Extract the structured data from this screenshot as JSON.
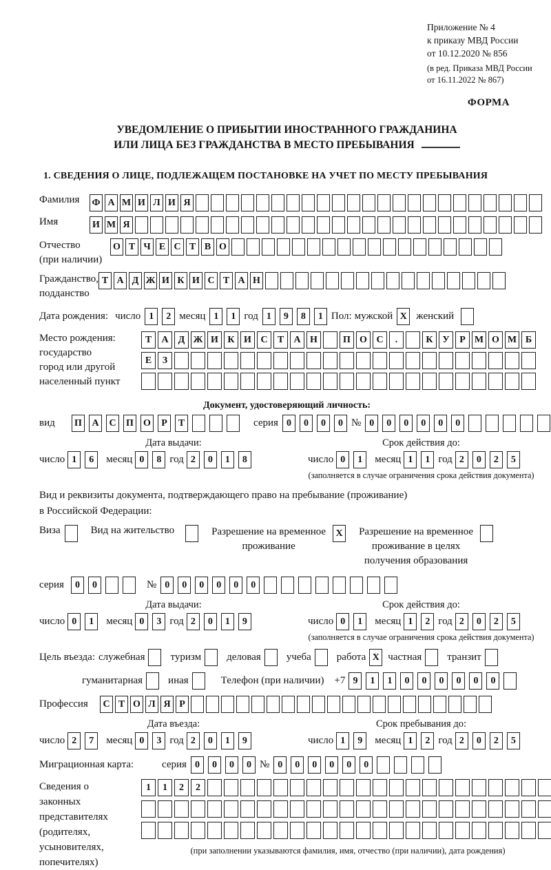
{
  "header": {
    "appendix": [
      "Приложение № 4",
      "к приказу МВД России",
      "от 10.12.2020 № 856"
    ],
    "revision": [
      "(в ред. Приказа МВД России",
      "от 16.11.2022 № 867)"
    ],
    "forma": "ФОРМА"
  },
  "title": {
    "line1": "УВЕДОМЛЕНИЕ О ПРИБЫТИИ ИНОСТРАННОГО ГРАЖДАНИНА",
    "line2": "ИЛИ ЛИЦА БЕЗ ГРАЖДАНСТВА В МЕСТО ПРЕБЫВАНИЯ"
  },
  "section1_heading": "1. СВЕДЕНИЯ О ЛИЦЕ, ПОДЛЕЖАЩЕМ ПОСТАНОВКЕ НА УЧЕТ ПО МЕСТУ ПРЕБЫВАНИЯ",
  "surname": {
    "label": "Фамилия",
    "cells": {
      "t": "ФАМИЛИЯ",
      "n": 30
    }
  },
  "firstname": {
    "label": "Имя",
    "cells": {
      "t": "ИМЯ",
      "n": 30
    }
  },
  "patronymic": {
    "label1": "Отчество",
    "label2": "(при наличии)",
    "cells": {
      "t": "ОТЧЕСТВО",
      "n": 26
    }
  },
  "citizenship": {
    "label1": "Гражданство,",
    "label2": "подданство",
    "cells": {
      "t": "ТАДЖИКИСТАН",
      "n": 27
    }
  },
  "birthdate": {
    "label": "Дата рождения:",
    "day_label": "число",
    "day": {
      "t": "12",
      "n": 2
    },
    "month_label": "месяц",
    "month": {
      "t": "11",
      "n": 2
    },
    "year_label": "год",
    "year": {
      "t": "1981",
      "n": 4
    }
  },
  "sex": {
    "label": "Пол:",
    "male_label": "мужской",
    "male": {
      "t": "X",
      "n": 1
    },
    "female_label": "женский",
    "female": {
      "t": "",
      "n": 1
    }
  },
  "birthplace": {
    "label1": "Место рождения:",
    "label2": "государство",
    "label3": "город или другой",
    "label4": "населенный пункт",
    "row1": {
      "t": "ТАДЖИКИСТАН ПОС. КУРМОМБ",
      "n": 24
    },
    "row2": {
      "t": "ЕЗ",
      "n": 24
    },
    "row3": {
      "t": "",
      "n": 24
    }
  },
  "iddoc": {
    "heading": "Документ, удостоверяющий личность:",
    "kind_label": "вид",
    "kind": {
      "t": "ПАСПОРТ",
      "n": 10
    },
    "series_label": "серия",
    "series": {
      "t": "0000",
      "n": 4
    },
    "number_label": "№",
    "number": {
      "t": "000000",
      "n": 12
    }
  },
  "iddoc_issue": {
    "title": "Дата выдачи:",
    "day_label": "число",
    "day": {
      "t": "16",
      "n": 2
    },
    "month_label": "месяц",
    "month": {
      "t": "08",
      "n": 2
    },
    "year_label": "год",
    "year": {
      "t": "2018",
      "n": 4
    }
  },
  "iddoc_valid": {
    "title": "Срок действия до:",
    "day_label": "число",
    "day": {
      "t": "01",
      "n": 2
    },
    "month_label": "месяц",
    "month": {
      "t": "11",
      "n": 2
    },
    "year_label": "год",
    "year": {
      "t": "2025",
      "n": 4
    },
    "note": "(заполняется в случае ограничения срока действия документа)"
  },
  "permit": {
    "intro1": "Вид и реквизиты документа, подтверждающего право на пребывание (проживание)",
    "intro2": "в Российской Федерации:",
    "visa_label": "Виза",
    "visa": {
      "t": "",
      "n": 1
    },
    "residence_label": "Вид на жительство",
    "residence": {
      "t": "",
      "n": 1
    },
    "temp_label1": "Разрешение на временное",
    "temp_label2": "проживание",
    "temp": {
      "t": "X",
      "n": 1
    },
    "edu_label1": "Разрешение на временное",
    "edu_label2": "проживание в целях",
    "edu_label3": "получения образования",
    "edu": {
      "t": "",
      "n": 1
    }
  },
  "permit_doc": {
    "series_label": "серия",
    "series": {
      "t": "00",
      "n": 4
    },
    "number_label": "№",
    "number": {
      "t": "000000",
      "n": 14
    }
  },
  "permit_issue": {
    "title": "Дата выдачи:",
    "day_label": "число",
    "day": {
      "t": "01",
      "n": 2
    },
    "month_label": "месяц",
    "month": {
      "t": "03",
      "n": 2
    },
    "year_label": "год",
    "year": {
      "t": "2019",
      "n": 4
    }
  },
  "permit_valid": {
    "title": "Срок действия до:",
    "day_label": "число",
    "day": {
      "t": "01",
      "n": 2
    },
    "month_label": "месяц",
    "month": {
      "t": "12",
      "n": 2
    },
    "year_label": "год",
    "year": {
      "t": "2025",
      "n": 4
    },
    "note": "(заполняется в случае ограничения срока действия документа)"
  },
  "purpose": {
    "label": "Цель въезда:",
    "row1": [
      {
        "label": "служебная",
        "box": {
          "t": "",
          "n": 1
        }
      },
      {
        "label": "туризм",
        "box": {
          "t": "",
          "n": 1
        }
      },
      {
        "label": "деловая",
        "box": {
          "t": "",
          "n": 1
        }
      },
      {
        "label": "учеба",
        "box": {
          "t": "",
          "n": 1
        }
      },
      {
        "label": "работа",
        "box": {
          "t": "X",
          "n": 1
        }
      },
      {
        "label": "частная",
        "box": {
          "t": "",
          "n": 1
        }
      },
      {
        "label": "транзит",
        "box": {
          "t": "",
          "n": 1
        }
      }
    ],
    "row2": [
      {
        "label": "гуманитарная",
        "box": {
          "t": "",
          "n": 1
        }
      },
      {
        "label": "иная",
        "box": {
          "t": "",
          "n": 1
        }
      }
    ]
  },
  "phone": {
    "label": "Телефон (при наличии)",
    "prefix": "+7",
    "cells": {
      "t": "911000000",
      "n": 10
    }
  },
  "profession": {
    "label": "Профессия",
    "cells": {
      "t": "СТОЛЯР",
      "n": 26
    }
  },
  "entry_date": {
    "title": "Дата въезда:",
    "day_label": "число",
    "day": {
      "t": "27",
      "n": 2
    },
    "month_label": "месяц",
    "month": {
      "t": "03",
      "n": 2
    },
    "year_label": "год",
    "year": {
      "t": "2019",
      "n": 4
    }
  },
  "stay_until": {
    "title": "Срок пребывания до:",
    "day_label": "число",
    "day": {
      "t": "19",
      "n": 2
    },
    "month_label": "месяц",
    "month": {
      "t": "12",
      "n": 2
    },
    "year_label": "год",
    "year": {
      "t": "2025",
      "n": 4
    }
  },
  "migcard": {
    "label": "Миграционная карта:",
    "series_label": "серия",
    "series": {
      "t": "0000",
      "n": 4
    },
    "number_label": "№",
    "number": {
      "t": "000000",
      "n": 10
    }
  },
  "guardians": {
    "label_lines": [
      "Сведения о",
      "законных",
      "представителях",
      "(родителях,",
      "усыновителях,",
      "попечителях)"
    ],
    "row1": {
      "t": "1122",
      "n": 25
    },
    "row2": {
      "t": "",
      "n": 25
    },
    "row3": {
      "t": "",
      "n": 25
    },
    "note": "(при заполнении указываются фамилия, имя, отчество (при наличии), дата рождения)"
  }
}
